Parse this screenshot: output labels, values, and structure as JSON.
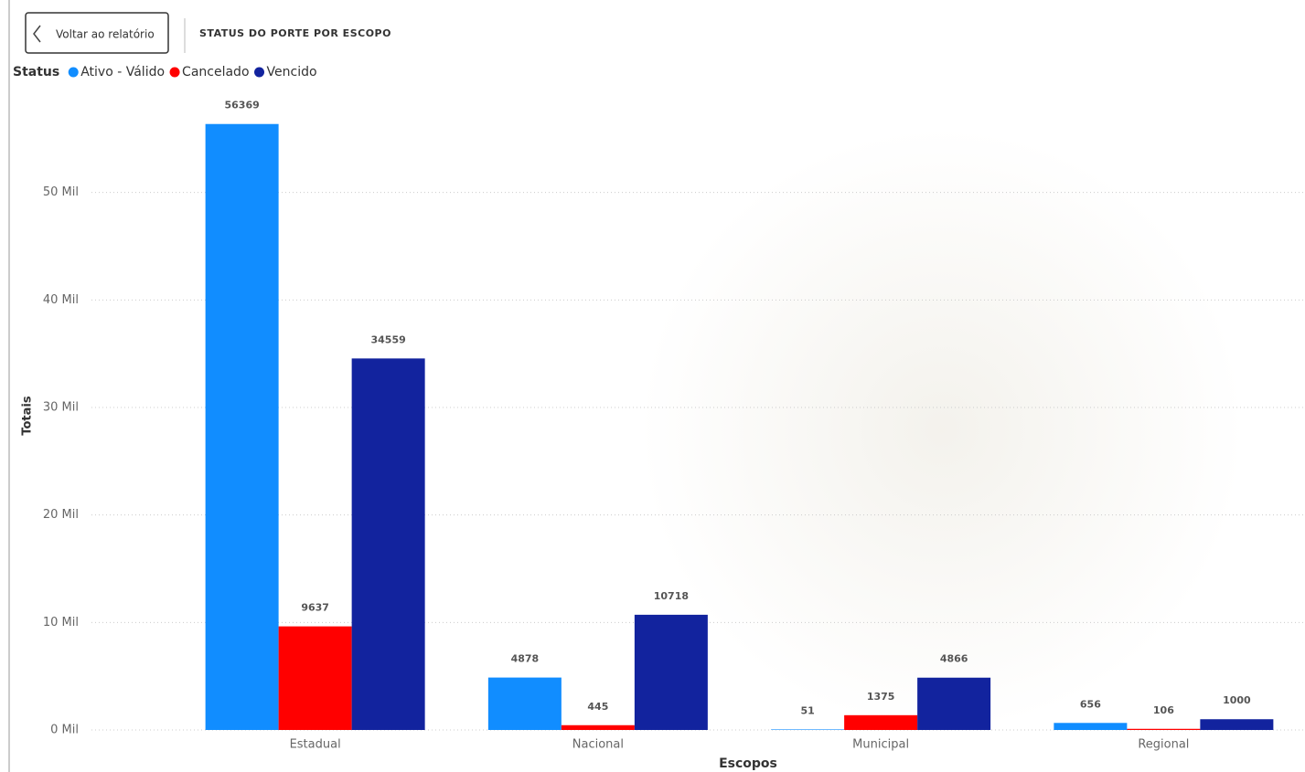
{
  "header": {
    "back_button": "Voltar ao relatório"
  },
  "chart_data": {
    "type": "bar",
    "title": "STATUS DO PORTE POR ESCOPO",
    "legend_title": "Status",
    "legend": "top-left",
    "x_label": "Escopos",
    "y_label": "Totais",
    "categories": [
      "Estadual",
      "Nacional",
      "Municipal",
      "Regional"
    ],
    "series": [
      {
        "name": "Ativo - Válido",
        "color": "#118dff",
        "values": [
          56369,
          4878,
          51,
          656
        ]
      },
      {
        "name": "Cancelado",
        "color": "#ff0000",
        "values": [
          9637,
          445,
          1375,
          106
        ]
      },
      {
        "name": "Vencido",
        "color": "#12239e",
        "values": [
          34559,
          10718,
          4866,
          1000
        ]
      }
    ],
    "ylim": [
      0,
      60000
    ],
    "yticks": [
      {
        "value": 0,
        "label": "0 Mil"
      },
      {
        "value": 10000,
        "label": "10 Mil"
      },
      {
        "value": 20000,
        "label": "20 Mil"
      },
      {
        "value": 30000,
        "label": "30 Mil"
      },
      {
        "value": 40000,
        "label": "40 Mil"
      },
      {
        "value": 50000,
        "label": "50 Mil"
      }
    ],
    "grid": true
  }
}
